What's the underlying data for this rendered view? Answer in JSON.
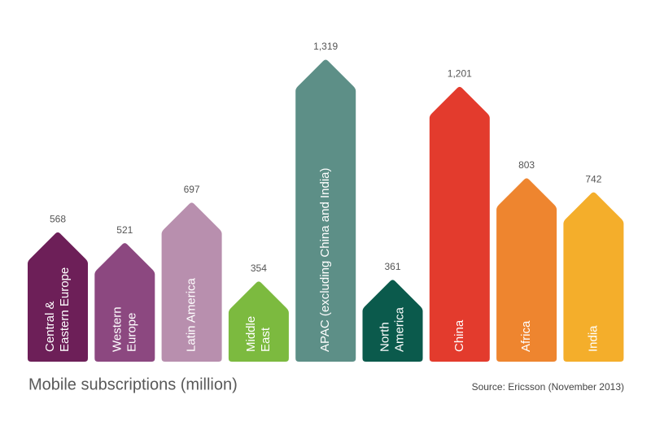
{
  "chart_data": {
    "type": "arrow-bar",
    "title": "Mobile subscriptions (million)",
    "source": "Source: Ericsson (November 2013)",
    "categories": [
      [
        "Central &",
        "Eastern Europe"
      ],
      [
        "Western",
        "Europe"
      ],
      [
        "Latin America"
      ],
      [
        "Middle",
        "East"
      ],
      [
        "APAC (excluding China and India)"
      ],
      [
        "North",
        "America"
      ],
      [
        "China"
      ],
      [
        "Africa"
      ],
      [
        "India"
      ]
    ],
    "values": [
      568,
      521,
      697,
      354,
      1319,
      361,
      1201,
      803,
      742
    ],
    "value_labels": [
      "568",
      "521",
      "697",
      "354",
      "1,319",
      "361",
      "1,201",
      "803",
      "742"
    ],
    "colors": [
      "#6d1f58",
      "#8c4880",
      "#b88fae",
      "#7cba3f",
      "#5d8f87",
      "#0b5a4c",
      "#e33b2d",
      "#ee852f",
      "#f4ae2b"
    ]
  }
}
